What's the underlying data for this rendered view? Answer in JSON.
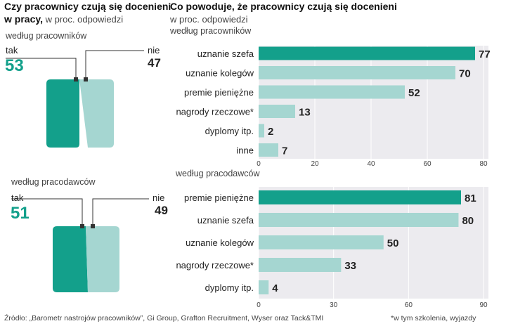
{
  "left": {
    "title_line1": "Czy pracownicy czują się docenieni",
    "title_line2_bold": "w pracy,",
    "title_line2_rest": " w proc. odpowiedzi",
    "panels": [
      {
        "group": "według pracowników",
        "yes_label": "tak",
        "yes_value": "53",
        "no_label": "nie",
        "no_value": "47",
        "yes_share": 53
      },
      {
        "group": "według  pracodawców",
        "yes_label": "tak",
        "yes_value": "51",
        "no_label": "nie",
        "no_value": "49",
        "yes_share": 51
      }
    ]
  },
  "right": {
    "title": "Co powoduje, że pracownicy czują się docenieni",
    "subtitle": "w proc. odpowiedzi"
  },
  "colors": {
    "primary": "#13a08b",
    "light": "#a5d6d1",
    "plot_bg": "#ecebef"
  },
  "chart_data": [
    {
      "type": "bar",
      "orientation": "horizontal",
      "title": "według pracowników",
      "categories": [
        "uznanie szefa",
        "uznanie kolegów",
        "premie pieniężne",
        "nagrody rzeczowe*",
        "dyplomy itp.",
        "inne"
      ],
      "values": [
        77,
        70,
        52,
        13,
        2,
        7
      ],
      "xlim": [
        0,
        80
      ],
      "ticks": [
        0,
        20,
        40,
        60,
        80
      ],
      "tick_labels": [
        "0",
        "20",
        "40",
        "60",
        "80"
      ],
      "highlight_index": 0
    },
    {
      "type": "bar",
      "orientation": "horizontal",
      "title": "według pracodawców",
      "categories": [
        "premie pieniężne",
        "uznanie szefa",
        "uznanie kolegów",
        "nagrody rzeczowe*",
        "dyplomy itp."
      ],
      "values": [
        81,
        80,
        50,
        33,
        4
      ],
      "xlim": [
        0,
        90
      ],
      "ticks": [
        0,
        30,
        60,
        90
      ],
      "tick_labels": [
        "0",
        "30",
        "60",
        "90"
      ],
      "highlight_index": 0
    }
  ],
  "footer": {
    "source": "Źródło: „Barometr nastrojów pracowników”, Gi Group, Grafton Recruitment, Wyser oraz Tack&TMI",
    "note": "*w tym szkolenia, wyjazdy"
  }
}
